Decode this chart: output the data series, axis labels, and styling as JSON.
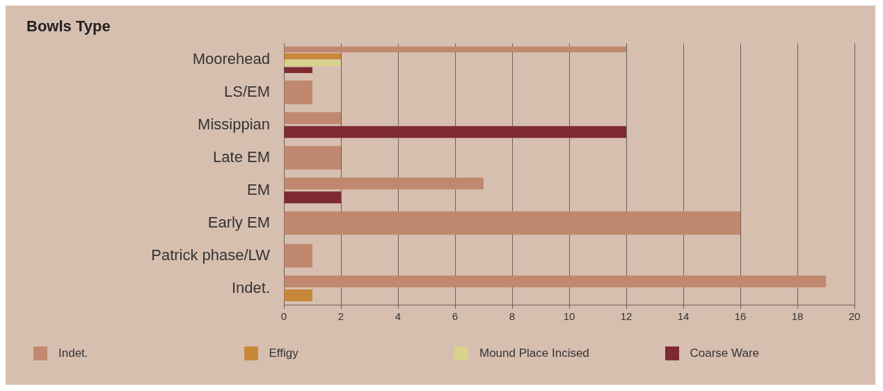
{
  "chart_data": {
    "type": "bar",
    "orientation": "horizontal",
    "title": "Bowls Type",
    "categories": [
      "Moorehead",
      "LS/EM",
      "Missippian",
      "Late EM",
      "EM",
      "Early EM",
      "Patrick phase/LW",
      "Indet."
    ],
    "series": [
      {
        "name": "Indet.",
        "color": "#c0896f",
        "values": [
          12,
          1,
          2,
          2,
          7,
          16,
          1,
          19
        ]
      },
      {
        "name": "Effigy",
        "color": "#c8883a",
        "values": [
          2,
          null,
          null,
          null,
          null,
          null,
          null,
          1
        ]
      },
      {
        "name": "Mound Place Incised",
        "color": "#d9d38a",
        "values": [
          2,
          null,
          null,
          null,
          null,
          null,
          null,
          null
        ]
      },
      {
        "name": "Coarse Ware",
        "color": "#7d2a30",
        "values": [
          1,
          null,
          12,
          null,
          2,
          null,
          null,
          null
        ]
      }
    ],
    "xlim": [
      0,
      20
    ],
    "xticks": [
      0,
      2,
      4,
      6,
      8,
      10,
      12,
      14,
      16,
      18,
      20
    ],
    "grid": "x",
    "legend": "bottom"
  }
}
